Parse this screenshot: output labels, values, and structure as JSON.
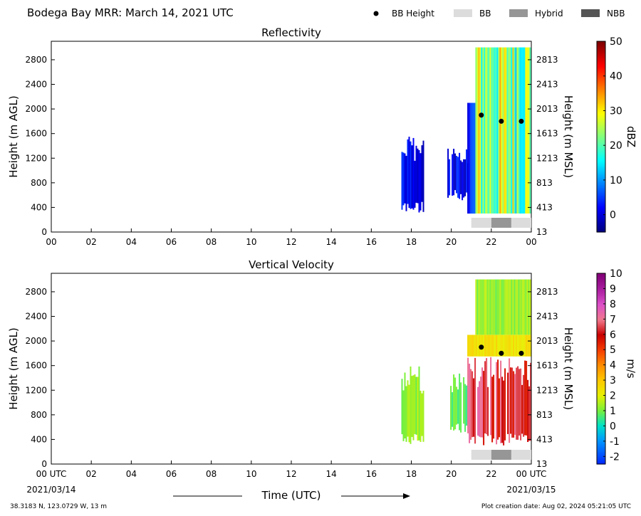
{
  "header": {
    "title": "Bodega Bay MRR:  March 14, 2021 UTC",
    "legend": [
      {
        "label": "BB Height",
        "marker": "dot",
        "color": "#000000"
      },
      {
        "label": "BB",
        "marker": "box",
        "color": "#dcdcdc"
      },
      {
        "label": "Hybrid",
        "marker": "box",
        "color": "#969696"
      },
      {
        "label": "NBB",
        "marker": "box",
        "color": "#555555"
      }
    ]
  },
  "footer": {
    "location": "38.3183 N, 123.0729 W, 13 m",
    "creation": "Plot creation date: Aug 02, 2024 05:21:05 UTC",
    "xlabel": "Time (UTC)",
    "start_date": "2021/03/14",
    "end_date": "2021/03/15"
  },
  "chart_data": [
    {
      "type": "heatmap",
      "title": "Reflectivity",
      "ylabel": "Height (m AGL)",
      "ylabel_right": "Height (m MSL)",
      "colorbar_label": "dBZ",
      "colormap": "jet",
      "colorbar_range": [
        -5,
        50
      ],
      "colorbar_ticks": [
        0,
        10,
        20,
        30,
        40,
        50
      ],
      "xlim": [
        0,
        24
      ],
      "ylim": [
        0,
        3100
      ],
      "xticks": [
        "00",
        "02",
        "04",
        "06",
        "08",
        "10",
        "12",
        "14",
        "16",
        "18",
        "20",
        "22",
        "00"
      ],
      "yticks_left": [
        0,
        400,
        800,
        1200,
        1600,
        2000,
        2400,
        2800
      ],
      "yticks_right": [
        13,
        413,
        813,
        1213,
        1613,
        2013,
        2413,
        2813
      ],
      "echo_regions": [
        {
          "t_start": 17.5,
          "t_end": 18.6,
          "h_bottom": 300,
          "h_top": 1600,
          "value_low": -2,
          "value_high": 5
        },
        {
          "t_start": 19.8,
          "t_end": 20.8,
          "h_bottom": 500,
          "h_top": 1450,
          "value_low": -2,
          "value_high": 5
        },
        {
          "t_start": 20.8,
          "t_end": 21.2,
          "h_bottom": 300,
          "h_top": 2100,
          "value_low": 0,
          "value_high": 10
        },
        {
          "t_start": 21.2,
          "t_end": 24.0,
          "h_bottom": 300,
          "h_top": 3000,
          "value_low": 12,
          "value_high": 35
        }
      ],
      "bb_height": [
        {
          "t": 21.5,
          "h": 1900
        },
        {
          "t": 22.5,
          "h": 1800
        },
        {
          "t": 23.5,
          "h": 1800
        }
      ],
      "bb_type_bar": [
        {
          "t_start": 21.0,
          "t_end": 22.0,
          "type": "BB"
        },
        {
          "t_start": 22.0,
          "t_end": 23.0,
          "type": "Hybrid"
        },
        {
          "t_start": 23.0,
          "t_end": 24.0,
          "type": "BB"
        }
      ]
    },
    {
      "type": "heatmap",
      "title": "Vertical Velocity",
      "ylabel": "Height (m AGL)",
      "ylabel_right": "Height (m MSL)",
      "colorbar_label": "m/s",
      "colormap": "velocity",
      "colorbar_range": [
        -2.5,
        10
      ],
      "colorbar_ticks": [
        -2,
        -1,
        0,
        1,
        2,
        3,
        4,
        5,
        6,
        7,
        8,
        9,
        10
      ],
      "xlim": [
        0,
        24
      ],
      "ylim": [
        0,
        3100
      ],
      "xticks": [
        "00 UTC",
        "02",
        "04",
        "06",
        "08",
        "10",
        "12",
        "14",
        "16",
        "18",
        "20",
        "22",
        "00 UTC"
      ],
      "yticks_left": [
        0,
        400,
        800,
        1200,
        1600,
        2000,
        2400,
        2800
      ],
      "yticks_right": [
        13,
        413,
        813,
        1213,
        1613,
        2013,
        2413,
        2813
      ],
      "echo_regions": [
        {
          "t_start": 17.5,
          "t_end": 18.6,
          "h_bottom": 300,
          "h_top": 1600,
          "value_low": 0.8,
          "value_high": 1.8
        },
        {
          "t_start": 19.8,
          "t_end": 20.8,
          "h_bottom": 500,
          "h_top": 1500,
          "value_low": 0.3,
          "value_high": 1.2
        },
        {
          "t_start": 20.8,
          "t_end": 24.0,
          "h_bottom": 300,
          "h_top": 1750,
          "value_low": 5.5,
          "value_high": 7.5
        },
        {
          "t_start": 20.8,
          "t_end": 24.0,
          "h_bottom": 1750,
          "h_top": 2100,
          "value_low": 2.0,
          "value_high": 2.8
        },
        {
          "t_start": 21.2,
          "t_end": 24.0,
          "h_bottom": 2100,
          "h_top": 3000,
          "value_low": 0.8,
          "value_high": 1.8
        }
      ],
      "bb_height": [
        {
          "t": 21.5,
          "h": 1900
        },
        {
          "t": 22.5,
          "h": 1800
        },
        {
          "t": 23.5,
          "h": 1800
        }
      ],
      "bb_type_bar": [
        {
          "t_start": 21.0,
          "t_end": 22.0,
          "type": "BB"
        },
        {
          "t_start": 22.0,
          "t_end": 23.0,
          "type": "Hybrid"
        },
        {
          "t_start": 23.0,
          "t_end": 24.0,
          "type": "BB"
        }
      ]
    }
  ]
}
